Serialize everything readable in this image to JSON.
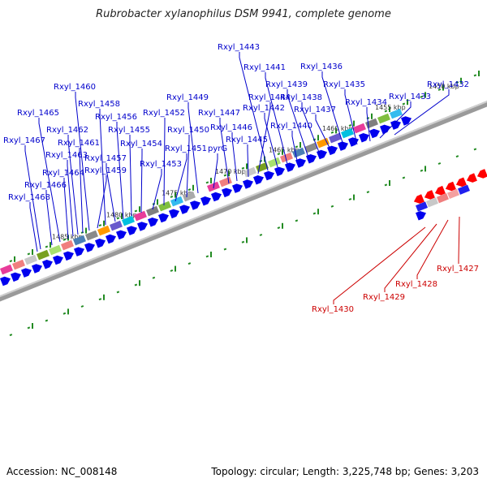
{
  "title": "Rubrobacter xylanophilus DSM 9941, complete genome",
  "footer": {
    "accession": "Accession: NC_008148",
    "topology": "Topology: circular; Length: 3,225,748 bp; Genes: 3,203"
  },
  "scale_marks": [
    "1450 kbp",
    "1455 kbp",
    "1460 kbp",
    "1465 kbp",
    "1470 kbp",
    "1475 kbp",
    "1480 kbp",
    "1485 kbp"
  ],
  "colors": {
    "forward_label": "#0000cc",
    "reverse_label": "#cc0000",
    "forward_arrow": "#0000ee",
    "reverse_arrow": "#ff0000",
    "scale": "#228b22"
  },
  "forward_genes": [
    "Rxyl_1468",
    "Rxyl_1467",
    "Rxyl_1466",
    "Rxyl_1465",
    "Rxyl_1464",
    "Rxyl_1463",
    "Rxyl_1462",
    "Rxyl_1461",
    "Rxyl_1460",
    "Rxyl_1459",
    "Rxyl_1458",
    "Rxyl_1457",
    "Rxyl_1456",
    "Rxyl_1455",
    "Rxyl_1454",
    "Rxyl_1453",
    "Rxyl_1452",
    "Rxyl_1451",
    "Rxyl_1450",
    "Rxyl_1449",
    "pyrG",
    "Rxyl_1447",
    "Rxyl_1446",
    "Rxyl_1445",
    "Rxyl_1444",
    "Rxyl_1443",
    "Rxyl_1442",
    "Rxyl_1441",
    "Rxyl_1440",
    "Rxyl_1439",
    "Rxyl_1438",
    "Rxyl_1437",
    "Rxyl_1436",
    "Rxyl_1435",
    "Rxyl_1434",
    "Rxyl_1433",
    "Rxyl_1432"
  ],
  "reverse_genes": [
    "Rxyl_1430",
    "Rxyl_1429",
    "Rxyl_1428",
    "Rxyl_1427"
  ]
}
